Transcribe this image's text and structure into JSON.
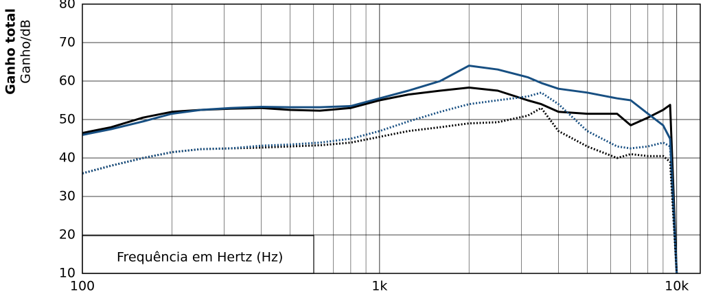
{
  "chart_data": {
    "type": "line",
    "ylabel": "Ganho total",
    "ylabel2": "Ganho/dB",
    "xlabel": "Frequência em Hertz (Hz)",
    "log_x": true,
    "grid": true,
    "x": [
      100,
      125,
      160,
      200,
      250,
      315,
      400,
      500,
      630,
      800,
      1000,
      1250,
      1600,
      2000,
      2500,
      3150,
      3500,
      4000,
      5000,
      6300,
      7000,
      8000,
      9000,
      9500,
      10000
    ],
    "series": [
      {
        "color": "#000000",
        "line_style": "solid",
        "values": [
          46.5,
          48,
          50.5,
          52,
          52.5,
          52.8,
          53,
          52.5,
          52.3,
          53,
          55,
          56.5,
          57.5,
          58.3,
          57.5,
          55,
          54,
          52,
          51.5,
          51.5,
          48.5,
          50.5,
          52.5,
          53.8,
          10
        ]
      },
      {
        "color": "#174f82",
        "line_style": "solid",
        "values": [
          46,
          47.5,
          49.5,
          51.5,
          52.5,
          53,
          53.3,
          53.2,
          53.2,
          53.5,
          55.5,
          57.5,
          60,
          64,
          63,
          61,
          59.5,
          58,
          57,
          55.5,
          55,
          51.5,
          48.5,
          45,
          10
        ]
      },
      {
        "color": "#000000",
        "line_style": "dotted",
        "values": [
          36,
          38,
          40,
          41.5,
          42.3,
          42.5,
          42.7,
          43,
          43.3,
          44,
          45.5,
          47,
          48,
          49,
          49.3,
          51,
          53,
          47,
          43,
          40,
          41,
          40.5,
          40.5,
          39,
          10
        ]
      },
      {
        "color": "#174f82",
        "line_style": "dotted",
        "values": [
          36,
          38,
          40,
          41.5,
          42.3,
          42.5,
          43.2,
          43.5,
          44,
          45,
          47,
          49.5,
          52,
          54,
          55,
          56,
          57,
          54,
          47,
          43,
          42.5,
          43,
          44,
          43,
          10
        ]
      }
    ],
    "xlim": [
      100,
      12000
    ],
    "xticks": [
      100,
      {
        "value": 1000,
        "label": "1k"
      },
      {
        "value": 10000,
        "label": "10k"
      }
    ],
    "ylim": [
      10,
      80
    ],
    "yticks": [
      10,
      20,
      30,
      40,
      50,
      60,
      70,
      80
    ]
  }
}
